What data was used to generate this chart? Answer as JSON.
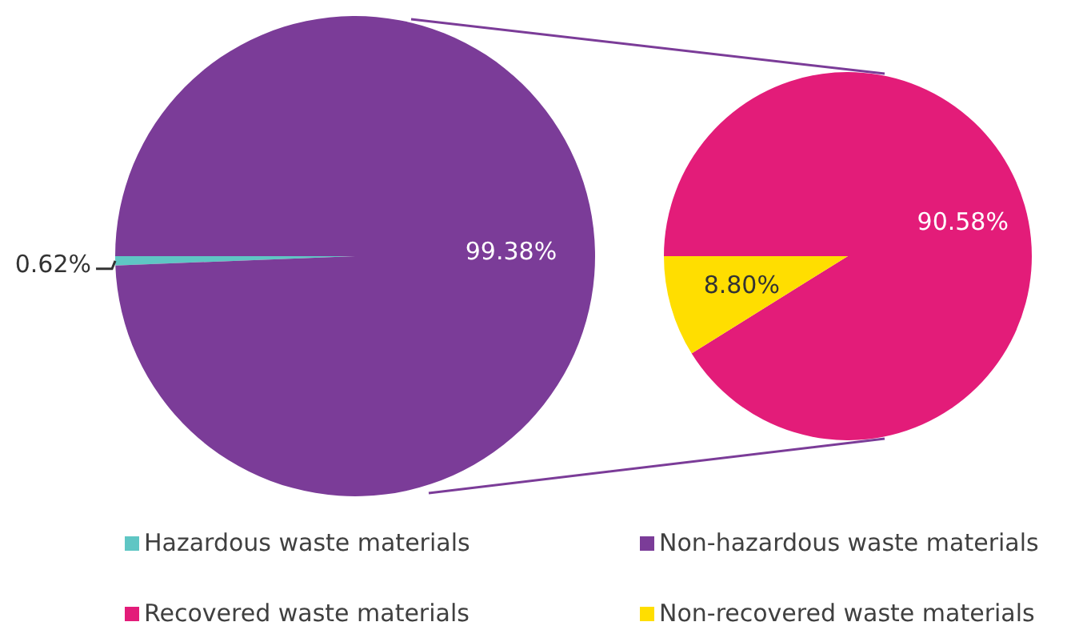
{
  "chart_data": [
    {
      "type": "pie",
      "categories": [
        "Hazardous waste materials",
        "Non-hazardous waste materials"
      ],
      "values": [
        0.62,
        99.38
      ],
      "colors": [
        "#5fc6c4",
        "#7b3c98"
      ],
      "value_labels": [
        "0.62%",
        "99.38%"
      ],
      "legend": "bottom"
    },
    {
      "type": "pie",
      "categories": [
        "Recovered waste materials",
        "Non-recovered waste materials"
      ],
      "values": [
        90.58,
        8.8
      ],
      "colors": [
        "#e31c79",
        "#ffde00"
      ],
      "value_labels": [
        "90.58%",
        "8.80%"
      ],
      "legend": "bottom"
    }
  ]
}
